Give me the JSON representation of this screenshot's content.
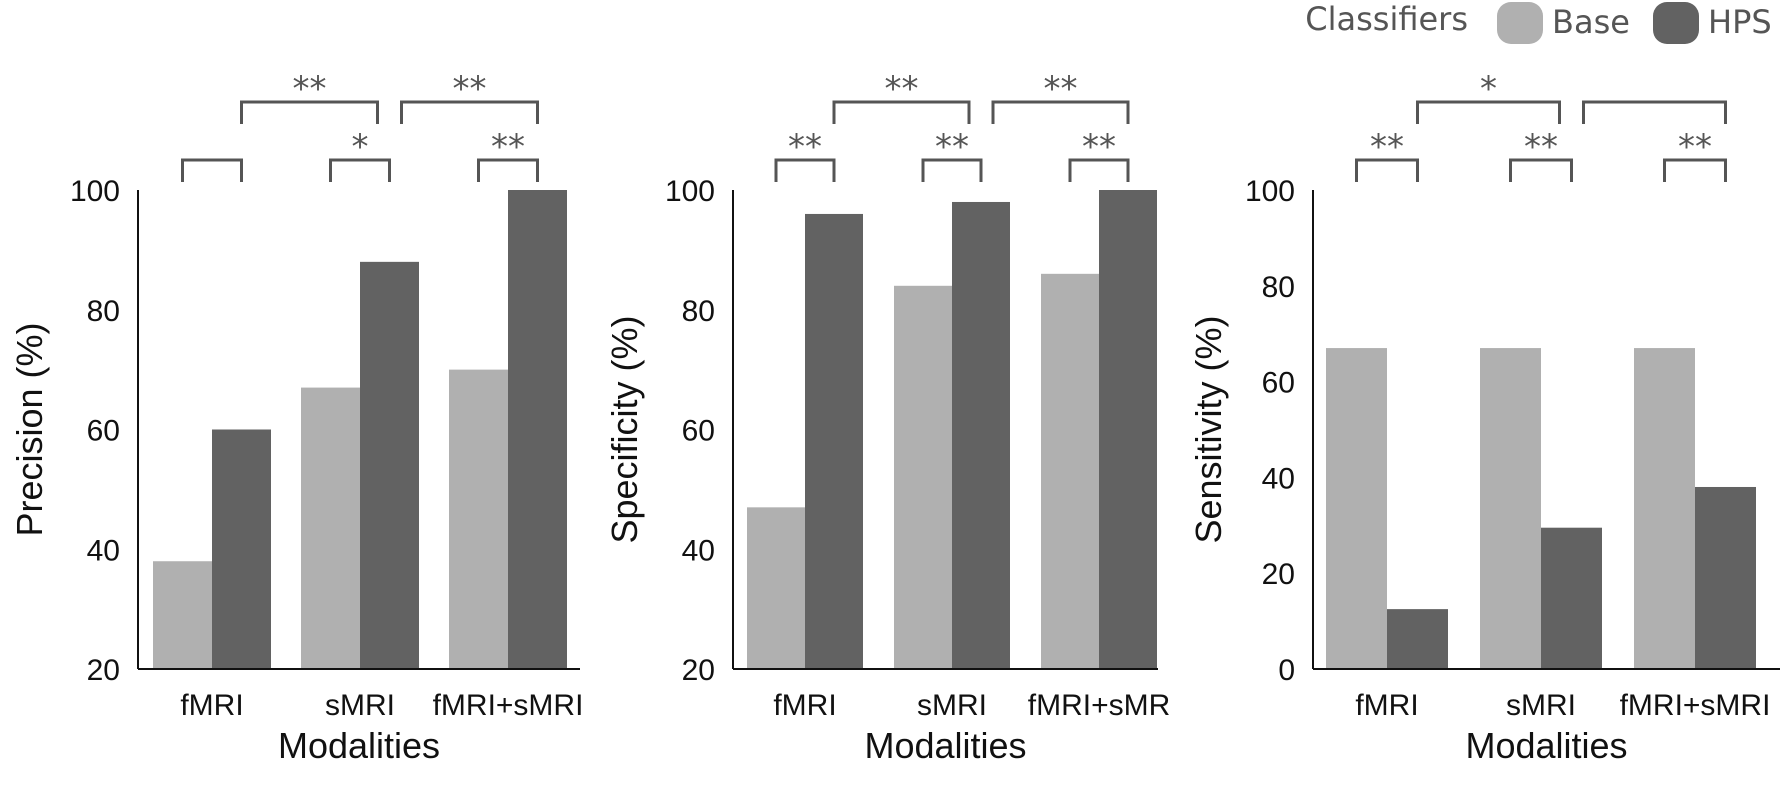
{
  "legend": {
    "title": "Classifiers",
    "items": [
      {
        "label": "Base",
        "color": "#b0b0b0"
      },
      {
        "label": "HPS",
        "color": "#626262"
      }
    ]
  },
  "chart_data": [
    {
      "type": "bar",
      "categories": [
        "fMRI",
        "sMRI",
        "fMRI+sMRI"
      ],
      "series": [
        {
          "name": "Base",
          "values": [
            38,
            67,
            70
          ]
        },
        {
          "name": "HPS",
          "values": [
            60,
            88,
            100
          ]
        }
      ],
      "xlabel": "Modalities",
      "ylabel": "Precision (%)",
      "ylim": [
        20,
        100
      ],
      "yticks": [
        20,
        40,
        60,
        80,
        100
      ],
      "significance": [
        {
          "from": [
            0,
            0
          ],
          "to": [
            0,
            1
          ],
          "level": 0,
          "label": ""
        },
        {
          "from": [
            1,
            0
          ],
          "to": [
            1,
            1
          ],
          "level": 0,
          "label": "*"
        },
        {
          "from": [
            2,
            0
          ],
          "to": [
            2,
            1
          ],
          "level": 0,
          "label": "**"
        },
        {
          "from": [
            0,
            1
          ],
          "to": [
            1,
            1
          ],
          "level": 1,
          "label": "**"
        },
        {
          "from": [
            1,
            1
          ],
          "to": [
            2,
            1
          ],
          "level": 1,
          "label": "**"
        }
      ]
    },
    {
      "type": "bar",
      "categories": [
        "fMRI",
        "sMRI",
        "fMRI+sMR"
      ],
      "series": [
        {
          "name": "Base",
          "values": [
            47,
            84,
            86
          ]
        },
        {
          "name": "HPS",
          "values": [
            96,
            98,
            100
          ]
        }
      ],
      "xlabel": "Modalities",
      "ylabel": "Specificity (%)",
      "ylim": [
        20,
        100
      ],
      "yticks": [
        20,
        40,
        60,
        80,
        100
      ],
      "significance": [
        {
          "from": [
            0,
            0
          ],
          "to": [
            0,
            1
          ],
          "level": 0,
          "label": "**"
        },
        {
          "from": [
            1,
            0
          ],
          "to": [
            1,
            1
          ],
          "level": 0,
          "label": "**"
        },
        {
          "from": [
            2,
            0
          ],
          "to": [
            2,
            1
          ],
          "level": 0,
          "label": "**"
        },
        {
          "from": [
            0,
            1
          ],
          "to": [
            1,
            1
          ],
          "level": 1,
          "label": "**"
        },
        {
          "from": [
            1,
            1
          ],
          "to": [
            2,
            1
          ],
          "level": 1,
          "label": "**"
        }
      ]
    },
    {
      "type": "bar",
      "categories": [
        "fMRI",
        "sMRI",
        "fMRI+sMRI"
      ],
      "series": [
        {
          "name": "Base",
          "values": [
            67,
            67,
            67
          ]
        },
        {
          "name": "HPS",
          "values": [
            12.5,
            29.5,
            38
          ]
        }
      ],
      "xlabel": "Modalities",
      "ylabel": "Sensitivity (%)",
      "ylim": [
        0,
        100
      ],
      "yticks": [
        0,
        20,
        40,
        60,
        80,
        100
      ],
      "significance": [
        {
          "from": [
            0,
            0
          ],
          "to": [
            0,
            1
          ],
          "level": 0,
          "label": "**"
        },
        {
          "from": [
            1,
            0
          ],
          "to": [
            1,
            1
          ],
          "level": 0,
          "label": "**"
        },
        {
          "from": [
            2,
            0
          ],
          "to": [
            2,
            1
          ],
          "level": 0,
          "label": "**"
        },
        {
          "from": [
            0,
            1
          ],
          "to": [
            1,
            1
          ],
          "level": 1,
          "label": "*"
        },
        {
          "from": [
            1,
            1
          ],
          "to": [
            2,
            1
          ],
          "level": 1,
          "label": ""
        }
      ]
    }
  ]
}
